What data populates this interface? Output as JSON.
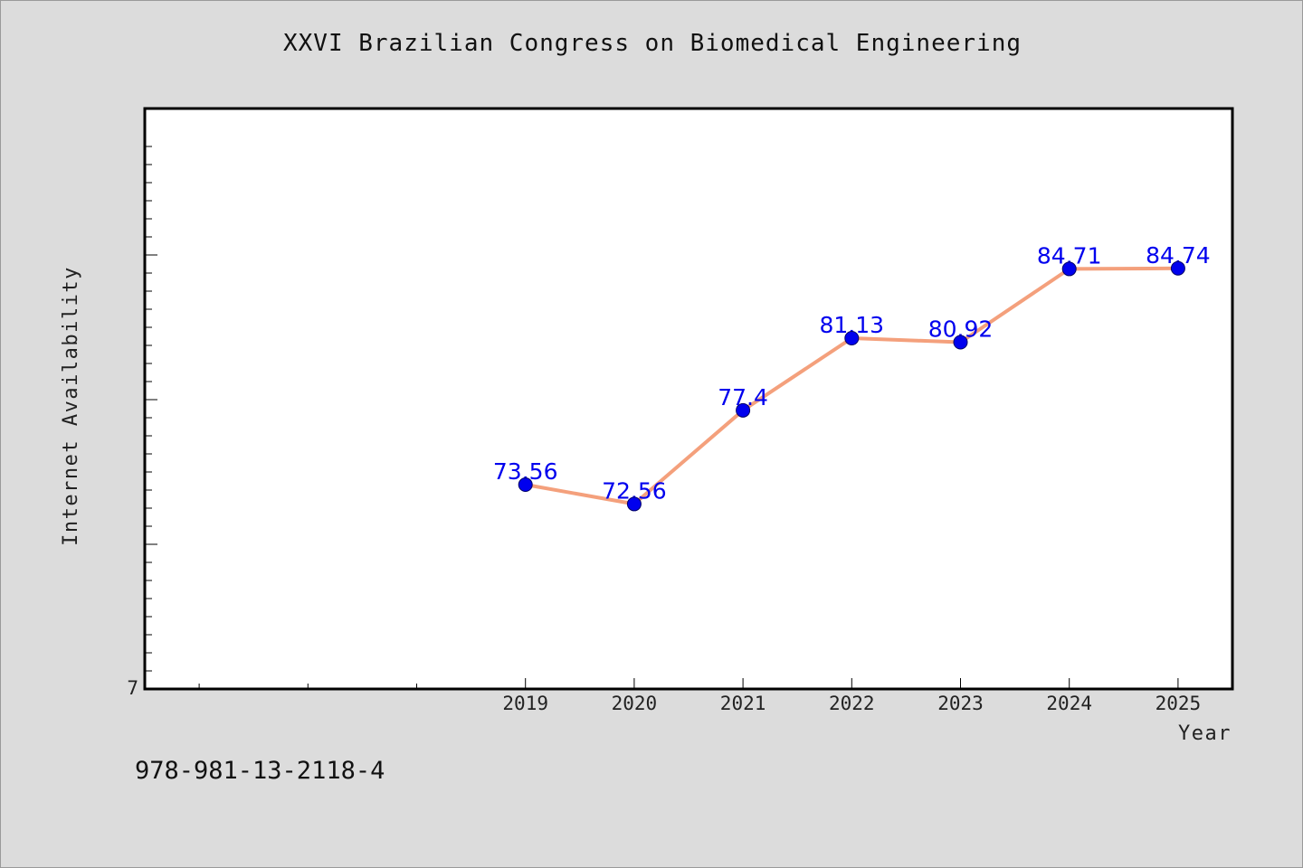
{
  "header": {
    "title": "XXVI Brazilian Congress on Biomedical Engineering"
  },
  "footer": {
    "isbn": "978-981-13-2118-4"
  },
  "chart_data": {
    "type": "line",
    "title": "XXVI Brazilian Congress on Biomedical Engineering",
    "xlabel": "Year",
    "ylabel": "Internet Availability",
    "x": [
      2019,
      2020,
      2021,
      2022,
      2023,
      2024,
      2025
    ],
    "x_tick_labels": [
      "2019",
      "2020",
      "2021",
      "2022",
      "2023",
      "2024",
      "2025"
    ],
    "xlim": [
      2015.5,
      2025.5
    ],
    "y_tick_labels": [
      "7"
    ],
    "y_bottom": 63,
    "ylim": [
      63,
      93
    ],
    "series": [
      {
        "values": [
          73.56,
          72.56,
          77.4,
          81.13,
          80.92,
          84.71,
          84.74
        ],
        "labels": [
          "73.56",
          "72.56",
          "77.4",
          "81.13",
          "80.92",
          "84.71",
          "84.74"
        ],
        "line_color": "#f4a07c",
        "marker_color": "#0000ee"
      }
    ],
    "grid": false,
    "legend": "none"
  }
}
